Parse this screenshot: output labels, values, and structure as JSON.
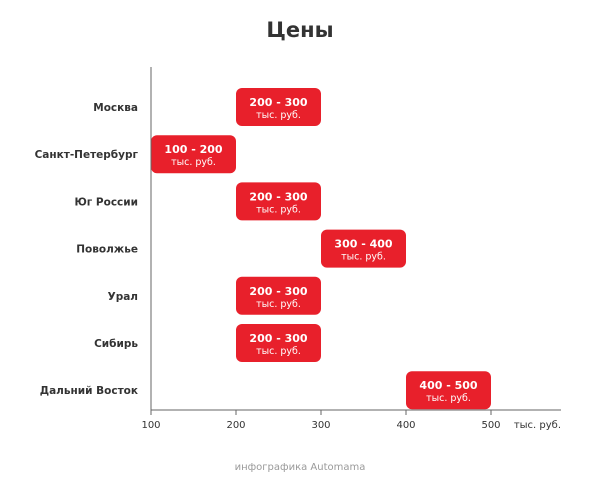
{
  "chart_data": {
    "type": "bar",
    "orientation": "horizontal-range",
    "title": "Цены",
    "categories": [
      "Москва",
      "Санкт-Петербург",
      "Юг России",
      "Поволжье",
      "Урал",
      "Сибирь",
      "Дальний Восток"
    ],
    "ranges": [
      {
        "min": 200,
        "max": 300,
        "label": "200 - 300",
        "unit": "тыс. руб."
      },
      {
        "min": 100,
        "max": 200,
        "label": "100 - 200",
        "unit": "тыс. руб."
      },
      {
        "min": 200,
        "max": 300,
        "label": "200 - 300",
        "unit": "тыс. руб."
      },
      {
        "min": 300,
        "max": 400,
        "label": "300 - 400",
        "unit": "тыс. руб."
      },
      {
        "min": 200,
        "max": 300,
        "label": "200 - 300",
        "unit": "тыс. руб."
      },
      {
        "min": 200,
        "max": 300,
        "label": "200 - 300",
        "unit": "тыс. руб."
      },
      {
        "min": 400,
        "max": 500,
        "label": "400 - 500",
        "unit": "тыс. руб."
      }
    ],
    "xticks": [
      100,
      200,
      300,
      400,
      500
    ],
    "xlim": [
      100,
      500
    ],
    "xunit": "тыс. руб.",
    "xlabel": "",
    "ylabel": "",
    "grid": false,
    "bar_color": "#e8202b"
  },
  "footer": {
    "credit": "инфографика Automama"
  }
}
